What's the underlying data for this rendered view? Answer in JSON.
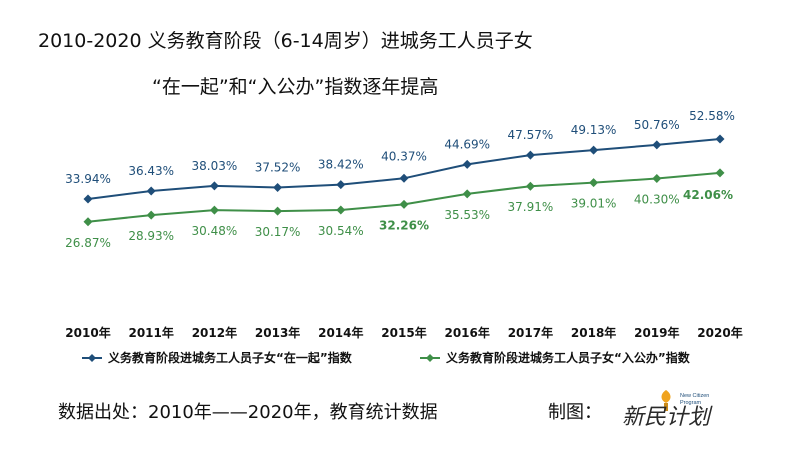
{
  "title_line1": "2010-2020 义务教育阶段（6-14周岁）进城务工人员子女",
  "title_line2": "“在一起”和“入公办”指数逐年提高",
  "source_text": "数据出处：2010年——2020年，教育统计数据",
  "maker_text": "制图：",
  "logo": {
    "main": "新民计划",
    "small1": "New Citizen",
    "small2": "Program"
  },
  "colors": {
    "blue": "#1f4e79",
    "green": "#3f8f48"
  },
  "chart_data": {
    "type": "line",
    "categories": [
      "2010年",
      "2011年",
      "2012年",
      "2013年",
      "2014年",
      "2015年",
      "2016年",
      "2017年",
      "2018年",
      "2019年",
      "2020年"
    ],
    "series": [
      {
        "name": "义务教育阶段进城务工人员子女“在一起”指数",
        "values": [
          33.94,
          36.43,
          38.03,
          37.52,
          38.42,
          40.37,
          44.69,
          47.57,
          49.13,
          50.76,
          52.58
        ],
        "labels": [
          "33.94%",
          "36.43%",
          "38.03%",
          "37.52%",
          "38.42%",
          "40.37%",
          "44.69%",
          "47.57%",
          "49.13%",
          "50.76%",
          "52.58%"
        ]
      },
      {
        "name": "义务教育阶段进城务工人员子女“入公办”指数",
        "values": [
          26.87,
          28.93,
          30.48,
          30.17,
          30.54,
          32.26,
          35.53,
          37.91,
          39.01,
          40.3,
          42.06
        ],
        "labels": [
          "26.87%",
          "28.93%",
          "30.48%",
          "30.17%",
          "30.54%",
          "32.26%",
          "35.53%",
          "37.91%",
          "39.01%",
          "40.30%",
          "42.06%"
        ]
      }
    ],
    "legend_position": "bottom",
    "grid": false
  }
}
